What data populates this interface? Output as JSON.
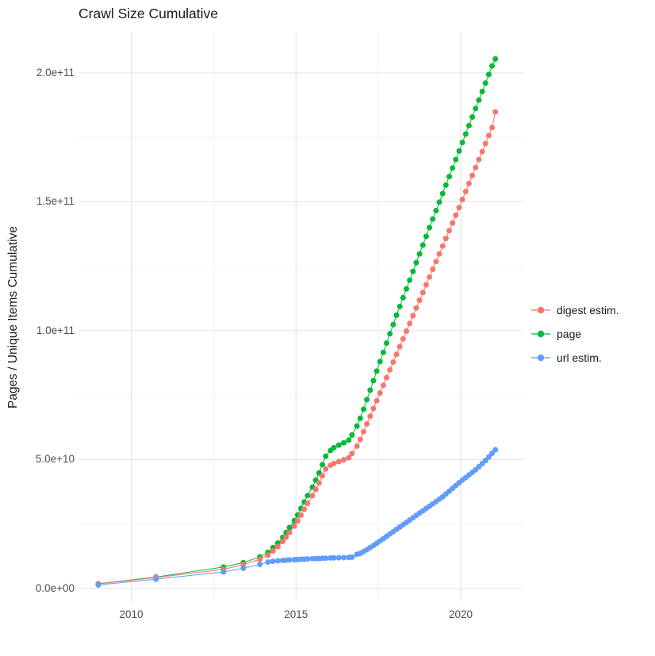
{
  "title": "Crawl Size Cumulative",
  "y_axis_title": "Pages / Unique Items Cumulative",
  "style": {
    "background": "#ffffff",
    "grid_major": "#e3e3e3",
    "grid_minor": "#f0f0f0",
    "axis_text": "#4d4d4d",
    "title_text": "#1a1a1a"
  },
  "legend": {
    "items": [
      {
        "label": "digest estim.",
        "color": "#F8766D"
      },
      {
        "label": "page",
        "color": "#00BA38"
      },
      {
        "label": "url estim.",
        "color": "#619CFF"
      }
    ]
  },
  "chart_data": {
    "type": "line",
    "title": "Crawl Size Cumulative",
    "xlabel": "",
    "ylabel": "Pages / Unique Items Cumulative",
    "grid": true,
    "legend_position": "right",
    "xlim": [
      2008.4,
      2021.9
    ],
    "ylim_e9": [
      -5,
      216
    ],
    "x_ticks": [
      {
        "value": 2010,
        "label": "2010"
      },
      {
        "value": 2015,
        "label": "2015"
      },
      {
        "value": 2020,
        "label": "2020"
      }
    ],
    "x_minor": [
      2012.5,
      2017.5
    ],
    "y_ticks": [
      {
        "value_e9": 0,
        "label": "0.0e+00"
      },
      {
        "value_e9": 50,
        "label": "5.0e+10"
      },
      {
        "value_e9": 100,
        "label": "1.0e+11"
      },
      {
        "value_e9": 150,
        "label": "1.5e+11"
      },
      {
        "value_e9": 200,
        "label": "2.0e+11"
      }
    ],
    "y_minor_e9": [
      25,
      75,
      125,
      175
    ],
    "units_note": "values_e9 are cumulative counts in billions (1e9)",
    "x": [
      2009.0,
      2010.75,
      2012.8,
      2013.4,
      2013.9,
      2014.15,
      2014.3,
      2014.45,
      2014.6,
      2014.7,
      2014.8,
      2014.95,
      2015.05,
      2015.15,
      2015.25,
      2015.35,
      2015.5,
      2015.6,
      2015.7,
      2015.8,
      2015.9,
      2016.05,
      2016.15,
      2016.3,
      2016.45,
      2016.6,
      2016.7,
      2016.85,
      2016.95,
      2017.05,
      2017.15,
      2017.25,
      2017.35,
      2017.45,
      2017.55,
      2017.65,
      2017.75,
      2017.85,
      2017.95,
      2018.05,
      2018.15,
      2018.25,
      2018.35,
      2018.45,
      2018.55,
      2018.65,
      2018.75,
      2018.85,
      2018.95,
      2019.05,
      2019.15,
      2019.25,
      2019.35,
      2019.45,
      2019.55,
      2019.65,
      2019.75,
      2019.85,
      2019.95,
      2020.05,
      2020.15,
      2020.25,
      2020.35,
      2020.45,
      2020.55,
      2020.65,
      2020.75,
      2020.85,
      2020.95,
      2021.05
    ],
    "series": [
      {
        "name": "page",
        "key": "page",
        "color": "#00BA38",
        "values_e9": [
          1.8,
          4.4,
          8.3,
          10.0,
          12.2,
          14.0,
          15.8,
          17.6,
          19.8,
          21.7,
          23.6,
          26.3,
          28.5,
          31.0,
          33.5,
          36.0,
          39.3,
          42.0,
          44.8,
          48.0,
          51.3,
          53.5,
          54.6,
          55.6,
          56.5,
          57.5,
          59.5,
          63.0,
          66.0,
          69.5,
          73.2,
          76.9,
          80.6,
          84.3,
          88.0,
          91.6,
          95.2,
          98.8,
          102.4,
          106.0,
          109.4,
          112.8,
          116.2,
          119.6,
          123.0,
          126.4,
          129.8,
          133.2,
          136.6,
          140.0,
          143.3,
          146.6,
          149.9,
          153.2,
          156.5,
          159.8,
          163.1,
          166.4,
          169.7,
          173.0,
          176.3,
          179.6,
          182.9,
          186.2,
          189.5,
          192.8,
          196.1,
          199.4,
          202.7,
          205.4
        ]
      },
      {
        "name": "digest estim.",
        "key": "digest-estim",
        "color": "#F8766D",
        "values_e9": [
          1.7,
          4.2,
          7.4,
          9.2,
          11.3,
          12.9,
          14.5,
          16.2,
          18.2,
          19.9,
          21.7,
          24.2,
          26.2,
          28.4,
          30.7,
          33.0,
          36.0,
          38.4,
          40.9,
          43.7,
          46.3,
          47.8,
          48.5,
          49.2,
          49.9,
          50.7,
          52.3,
          55.2,
          57.8,
          60.8,
          63.8,
          66.8,
          69.8,
          72.8,
          75.8,
          78.8,
          81.8,
          84.8,
          87.8,
          90.8,
          93.8,
          96.8,
          99.8,
          102.8,
          105.8,
          108.8,
          111.8,
          114.8,
          117.8,
          120.8,
          123.8,
          126.8,
          129.8,
          132.8,
          135.8,
          138.8,
          141.8,
          144.8,
          147.8,
          150.9,
          154.0,
          157.1,
          160.2,
          163.3,
          166.4,
          169.5,
          172.6,
          175.7,
          178.8,
          184.9
        ]
      },
      {
        "name": "url estim.",
        "key": "url-estim",
        "color": "#619CFF",
        "values_e9": [
          1.3,
          3.6,
          6.4,
          7.8,
          9.3,
          10.2,
          10.5,
          10.7,
          10.85,
          10.95,
          11.05,
          11.15,
          11.2,
          11.3,
          11.35,
          11.4,
          11.5,
          11.55,
          11.6,
          11.65,
          11.7,
          11.8,
          11.85,
          11.9,
          11.95,
          12.0,
          12.1,
          13.2,
          13.6,
          14.3,
          15.0,
          15.8,
          16.6,
          17.5,
          18.4,
          19.3,
          20.2,
          21.1,
          22.0,
          22.9,
          23.8,
          24.7,
          25.6,
          26.5,
          27.4,
          28.3,
          29.2,
          30.1,
          31.0,
          31.9,
          32.8,
          33.7,
          34.6,
          35.5,
          36.6,
          37.7,
          38.8,
          39.9,
          41.0,
          42.0,
          43.0,
          44.0,
          45.0,
          46.0,
          47.2,
          48.4,
          49.6,
          51.0,
          52.4,
          53.8
        ]
      }
    ]
  }
}
